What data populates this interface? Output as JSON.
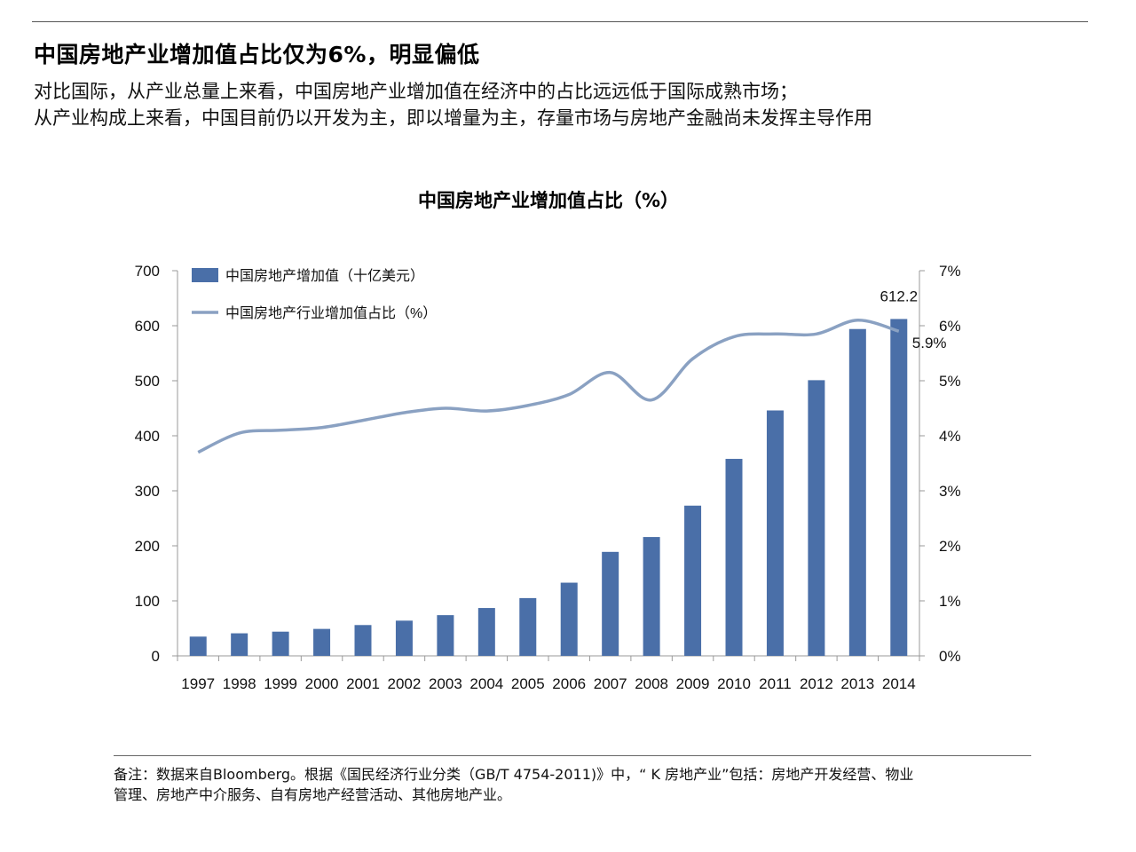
{
  "header": {
    "title": "中国房地产业增加值占比仅为6%，明显偏低",
    "lines": [
      "对比国际，从产业总量上来看，中国房地产业增加值在经济中的占比远远低于国际成熟市场；",
      "从产业构成上来看，中国目前仍以开发为主，即以增量为主，存量市场与房地产金融尚未发挥主导作用"
    ]
  },
  "colors": {
    "bar": "#4a6fa8",
    "line": "#8aa1c2",
    "axis": "#999999",
    "text": "#111111"
  },
  "chart_data": {
    "type": "bar+line",
    "title": "中国房地产业增加值占比（%）",
    "categories": [
      "1997",
      "1998",
      "1999",
      "2000",
      "2001",
      "2002",
      "2003",
      "2004",
      "2005",
      "2006",
      "2007",
      "2008",
      "2009",
      "2010",
      "2011",
      "2012",
      "2013",
      "2014"
    ],
    "series": [
      {
        "name": "中国房地产增加值（十亿美元）",
        "type": "bar",
        "axis": "left",
        "values": [
          35,
          41,
          44,
          49,
          56,
          64,
          74,
          87,
          105,
          133,
          189,
          216,
          273,
          358,
          446,
          501,
          594,
          612.2
        ]
      },
      {
        "name": "中国房地产行业增加值占比（%）",
        "type": "line",
        "axis": "right",
        "values": [
          3.7,
          4.05,
          4.1,
          4.15,
          4.28,
          4.42,
          4.5,
          4.45,
          4.55,
          4.75,
          5.15,
          4.65,
          5.4,
          5.8,
          5.85,
          5.85,
          6.1,
          5.9
        ]
      }
    ],
    "y_left": {
      "min": 0,
      "max": 700,
      "ticks": [
        "0",
        "100",
        "200",
        "300",
        "400",
        "500",
        "600",
        "700"
      ]
    },
    "y_right": {
      "min": 0,
      "max": 7,
      "ticks": [
        "0%",
        "1%",
        "2%",
        "3%",
        "4%",
        "5%",
        "6%",
        "7%"
      ]
    },
    "annotations": {
      "bar_last": "612.2",
      "line_last": "5.9%"
    },
    "legend_position": "top-left"
  },
  "footer": {
    "note_line1": "备注：数据来自Bloomberg。根据《国民经济行业分类（GB/T 4754-2011)》中，“ K 房地产业”包括：房地产开发经营、物业",
    "note_line2": "管理、房地产中介服务、自有房地产经营活动、其他房地产业。"
  }
}
